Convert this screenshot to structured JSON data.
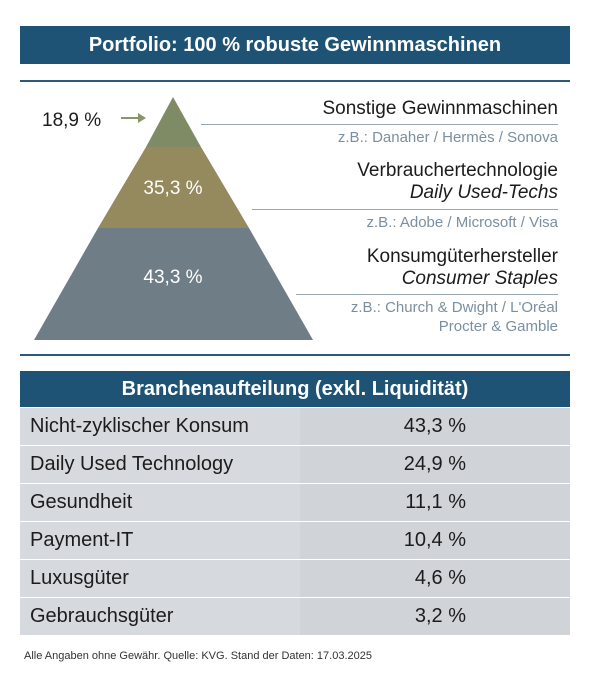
{
  "title": "Portfolio: 100 % robuste Gewinnmaschinen",
  "chart_data": [
    {
      "type": "pyramid",
      "segments": [
        {
          "name": "Sonstige Gewinnmaschinen",
          "subtitle": "",
          "value": 18.9,
          "label": "18,9 %",
          "examples": [
            "z.B.: Danaher / Hermès / Sonova"
          ],
          "color": "#7e8b64"
        },
        {
          "name": "Verbrauchertechnologie",
          "subtitle": "Daily Used-Techs",
          "value": 35.3,
          "label": "35,3 %",
          "examples": [
            "z.B.: Adobe / Microsoft / Visa"
          ],
          "color": "#958a5d"
        },
        {
          "name": "Konsumgüterhersteller",
          "subtitle": "Consumer Staples",
          "value": 43.3,
          "label": "43,3 %",
          "examples": [
            "z.B.: Church & Dwight / L'Oréal",
            "Procter & Gamble"
          ],
          "color": "#6f7d87"
        }
      ]
    },
    {
      "type": "table",
      "title": "Branchenaufteilung (exkl. Liquidität)",
      "rows": [
        {
          "category": "Nicht-zyklischer Konsum",
          "value": 43.3,
          "label": "43,3 %"
        },
        {
          "category": "Daily Used Technology",
          "value": 24.9,
          "label": "24,9 %"
        },
        {
          "category": "Gesundheit",
          "value": 11.1,
          "label": "11,1 %"
        },
        {
          "category": "Payment-IT",
          "value": 10.4,
          "label": "10,4 %"
        },
        {
          "category": "Luxusgüter",
          "value": 4.6,
          "label": "4,6 %"
        },
        {
          "category": "Gebrauchsgüter",
          "value": 3.2,
          "label": "3,2 %"
        }
      ]
    }
  ],
  "footnote": "Alle Angaben ohne Gewähr. Quelle: KVG. Stand der Daten: 17.03.2025",
  "colors": {
    "banner": "#1f5375",
    "arrow": "#8a9668",
    "example_text": "#7a8fa0"
  }
}
